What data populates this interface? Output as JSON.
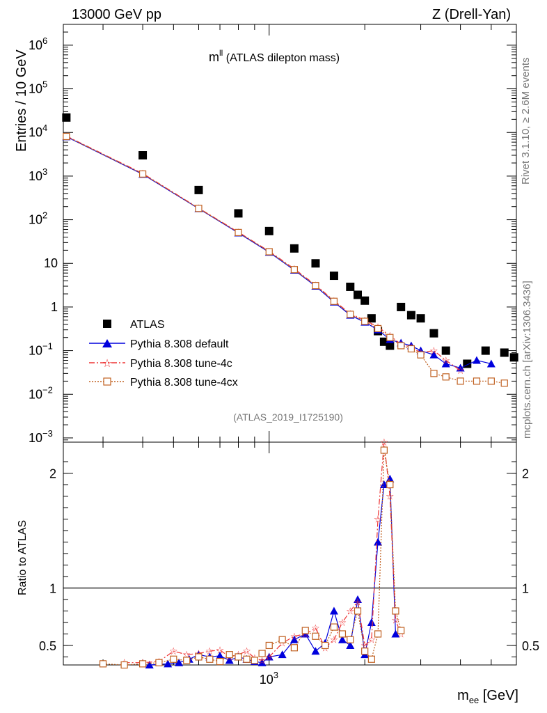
{
  "header": {
    "left": "13000 GeV pp",
    "right": "Z (Drell-Yan)"
  },
  "side_labels": {
    "rivet": "Rivet 3.1.10, ≥ 2.6M events",
    "mcplots": "mcplots.cern.ch [arXiv:1306.3436]"
  },
  "chart_data": [
    {
      "type": "scatter",
      "title_main": "m",
      "title_sup": "ll",
      "title_rest": " (ATLAS dilepton mass)",
      "analysis": "(ATLAS_2019_I1725190)",
      "ylabel": "Entries / 10 GeV",
      "ylog": true,
      "xlog": true,
      "xlim": [
        225,
        6000
      ],
      "ylim": [
        0.0008,
        3000000
      ],
      "y_tick_labels": [
        {
          "v": 1000000,
          "b": "10",
          "e": "6"
        },
        {
          "v": 100000,
          "b": "10",
          "e": "5"
        },
        {
          "v": 10000,
          "b": "10",
          "e": "4"
        },
        {
          "v": 1000,
          "b": "10",
          "e": "3"
        },
        {
          "v": 100,
          "b": "10",
          "e": "2"
        },
        {
          "v": 10,
          "b": "10",
          "e": ""
        },
        {
          "v": 1,
          "b": "1",
          "e": ""
        },
        {
          "v": 0.1,
          "b": "10",
          "e": "−1"
        },
        {
          "v": 0.01,
          "b": "10",
          "e": "−2"
        },
        {
          "v": 0.001,
          "b": "10",
          "e": "−3"
        }
      ],
      "legend": [
        {
          "label": "ATLAS",
          "marker": "square",
          "color": "#000000"
        },
        {
          "label": "Pythia 8.308 default",
          "marker": "triangle",
          "color": "#0000dd"
        },
        {
          "label": "Pythia 8.308 tune-4c",
          "marker": "star",
          "color": "#ee3333"
        },
        {
          "label": "Pythia 8.308 tune-4cx",
          "marker": "opensquare",
          "color": "#c06020"
        }
      ],
      "series": [
        {
          "name": "ATLAS",
          "color": "#000000",
          "x": [
            230,
            400,
            600,
            800,
            1000,
            1200,
            1400,
            1600,
            1800,
            1900,
            2000,
            2100,
            2200,
            2300,
            2400,
            2600,
            2800,
            3000,
            3300,
            3600,
            4200,
            4800,
            5500,
            5900
          ],
          "y": [
            22000,
            3000,
            480,
            140,
            55,
            22,
            10,
            5.2,
            2.9,
            1.9,
            1.4,
            0.55,
            0.28,
            0.16,
            0.13,
            1.0,
            0.65,
            0.55,
            0.25,
            0.1,
            0.05,
            0.1,
            0.09,
            0.07
          ]
        },
        {
          "name": "Pythia 8.308 default",
          "color": "#0000dd",
          "x": [
            230,
            400,
            600,
            800,
            1000,
            1200,
            1400,
            1600,
            1800,
            2000,
            2200,
            2400,
            2600,
            2800,
            3000,
            3300,
            3600,
            4000,
            4500,
            5000
          ],
          "y": [
            8000,
            1100,
            180,
            50,
            18,
            7,
            3,
            1.3,
            0.65,
            0.45,
            0.3,
            0.18,
            0.15,
            0.13,
            0.1,
            0.08,
            0.05,
            0.04,
            0.06,
            0.05
          ]
        },
        {
          "name": "Pythia 8.308 tune-4c",
          "color": "#ee3333",
          "x": [
            230,
            400,
            600,
            800,
            1000,
            1200,
            1400,
            1600,
            1800,
            2000,
            2200,
            2400,
            2600,
            2800,
            3000,
            3300,
            3600,
            4000
          ],
          "y": [
            8300,
            1150,
            185,
            52,
            19,
            7.5,
            3.2,
            1.4,
            0.7,
            0.5,
            0.35,
            0.22,
            0.14,
            0.12,
            0.09,
            0.1,
            0.06,
            0.035
          ]
        },
        {
          "name": "Pythia 8.308 tune-4cx",
          "color": "#c06020",
          "x": [
            230,
            400,
            600,
            800,
            1000,
            1200,
            1400,
            1600,
            1800,
            2000,
            2200,
            2400,
            2600,
            2800,
            3000,
            3300,
            3600,
            4000,
            4500,
            5000,
            5500
          ],
          "y": [
            8100,
            1120,
            182,
            51,
            18.5,
            7.2,
            3.1,
            1.35,
            0.68,
            0.47,
            0.32,
            0.2,
            0.13,
            0.11,
            0.08,
            0.03,
            0.025,
            0.02,
            0.02,
            0.02,
            0.018
          ]
        }
      ]
    },
    {
      "type": "scatter",
      "ylabel": "Ratio to ATLAS",
      "xlabel_main": "m",
      "xlabel_sub": "ee",
      "xlabel_rest": " [GeV]",
      "x_tick_label": {
        "v": 1000,
        "b": "10",
        "e": "3"
      },
      "xlog": true,
      "xlim": [
        225,
        6000
      ],
      "ylim": [
        0.33,
        2.27
      ],
      "y_tick_labels": [
        "2",
        "1",
        "0.5"
      ],
      "y_tick_values": [
        2,
        1,
        0.5
      ],
      "reference_line": 1,
      "series": [
        {
          "name": "Pythia 8.308 default",
          "color": "#0000dd",
          "x": [
            420,
            480,
            520,
            560,
            600,
            650,
            700,
            750,
            800,
            850,
            900,
            950,
            1000,
            1100,
            1200,
            1300,
            1400,
            1500,
            1600,
            1700,
            1800,
            1900,
            2000,
            2100,
            2200,
            2300,
            2400,
            2500
          ],
          "y": [
            0.33,
            0.34,
            0.35,
            0.38,
            0.42,
            0.4,
            0.41,
            0.37,
            0.4,
            0.38,
            0.36,
            0.35,
            0.4,
            0.42,
            0.55,
            0.6,
            0.45,
            0.52,
            0.8,
            0.55,
            0.5,
            0.9,
            0.42,
            0.7,
            1.4,
            1.9,
            1.95,
            0.6
          ]
        },
        {
          "name": "Pythia 8.308 tune-4c",
          "color": "#ee3333",
          "x": [
            350,
            400,
            450,
            500,
            550,
            600,
            650,
            700,
            750,
            800,
            850,
            900,
            950,
            1000,
            1100,
            1200,
            1300,
            1400,
            1500,
            1600,
            1700,
            1800,
            1900,
            2000,
            2100,
            2200,
            2300,
            2400,
            2500,
            2600
          ],
          "y": [
            0.35,
            0.35,
            0.36,
            0.45,
            0.42,
            0.43,
            0.45,
            0.46,
            0.4,
            0.42,
            0.45,
            0.39,
            0.37,
            0.4,
            0.52,
            0.58,
            0.6,
            0.65,
            0.48,
            0.55,
            0.7,
            0.8,
            0.88,
            0.5,
            0.55,
            1.6,
            2.27,
            1.8,
            0.72,
            0.6
          ]
        },
        {
          "name": "Pythia 8.308 tune-4cx",
          "color": "#c06020",
          "x": [
            300,
            350,
            400,
            450,
            500,
            550,
            600,
            650,
            700,
            750,
            800,
            850,
            900,
            950,
            1000,
            1100,
            1200,
            1300,
            1400,
            1500,
            1600,
            1700,
            1800,
            1900,
            2000,
            2100,
            2200,
            2300,
            2400,
            2500,
            2600
          ],
          "y": [
            0.34,
            0.33,
            0.34,
            0.35,
            0.38,
            0.37,
            0.4,
            0.38,
            0.36,
            0.42,
            0.4,
            0.38,
            0.37,
            0.43,
            0.5,
            0.55,
            0.48,
            0.63,
            0.58,
            0.5,
            0.66,
            0.6,
            0.55,
            0.8,
            0.45,
            0.38,
            0.6,
            2.2,
            1.9,
            0.8,
            0.63
          ]
        }
      ]
    }
  ]
}
